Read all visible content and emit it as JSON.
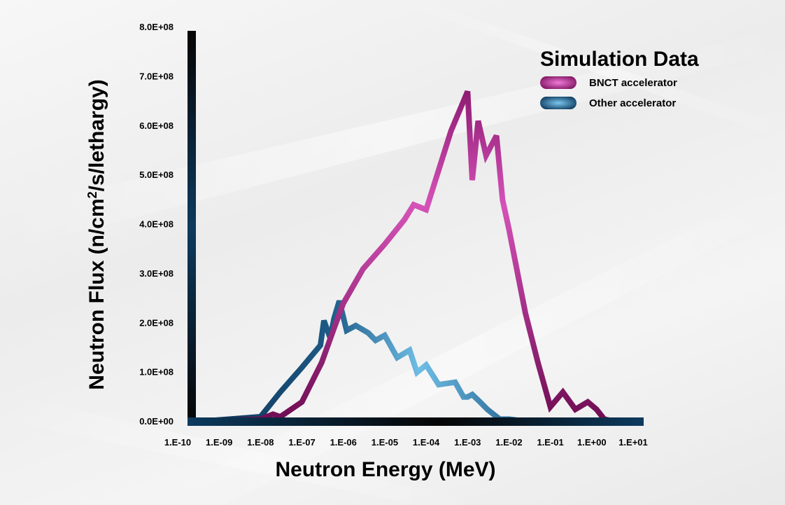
{
  "chart_data": {
    "type": "line",
    "xscale": "log",
    "xlabel": "Neutron Energy (MeV)",
    "ylabel_parts": {
      "before": "Neutron Flux (n/cm",
      "sup": "2",
      "after": "/s/lethargy)"
    },
    "x_tick_labels": [
      "1.E-10",
      "1.E-09",
      "1.E-08",
      "1.E-07",
      "1.E-06",
      "1.E-05",
      "1.E-04",
      "1.E-03",
      "1.E-02",
      "1.E-01",
      "1.E+00",
      "1.E+01"
    ],
    "x_tick_values": [
      1e-10,
      1e-09,
      1e-08,
      1e-07,
      1e-06,
      1e-05,
      0.0001,
      0.001,
      0.01,
      0.1,
      1,
      10
    ],
    "y_tick_labels": [
      "0.0E+00",
      "1.0E+08",
      "2.0E+08",
      "3.0E+08",
      "4.0E+08",
      "5.0E+08",
      "6.0E+08",
      "7.0E+08",
      "8.0E+08"
    ],
    "y_tick_values": [
      0,
      100000000,
      200000000,
      300000000,
      400000000,
      500000000,
      600000000,
      700000000,
      800000000
    ],
    "xlim": [
      1e-10,
      10
    ],
    "ylim": [
      0,
      800000000
    ],
    "grid": false,
    "legend": {
      "title": "Simulation Data",
      "placement": "top-right"
    },
    "series": [
      {
        "name": "BNCT accelerator",
        "color": "#b8409f",
        "x": [
          1e-10,
          3e-10,
          1e-08,
          2e-08,
          3e-08,
          1e-07,
          3e-07,
          6e-07,
          1e-06,
          3e-06,
          1e-05,
          3e-05,
          5e-05,
          0.0001,
          0.0004,
          0.001,
          0.0013,
          0.0018,
          0.0028,
          0.005,
          0.007,
          0.01,
          0.025,
          0.05,
          0.1,
          0.2,
          0.4,
          0.8,
          1.3,
          2,
          4,
          10
        ],
        "y": [
          0,
          0,
          5000000,
          15000000,
          10000000,
          40000000,
          120000000,
          190000000,
          240000000,
          310000000,
          360000000,
          410000000,
          440000000,
          430000000,
          590000000,
          670000000,
          490000000,
          610000000,
          540000000,
          580000000,
          450000000,
          390000000,
          220000000,
          120000000,
          30000000,
          60000000,
          25000000,
          40000000,
          25000000,
          5000000,
          0,
          0
        ]
      },
      {
        "name": "Other accelerator",
        "color": "#3f8ec8",
        "x": [
          1e-10,
          3e-10,
          1e-08,
          3e-08,
          1e-07,
          2.8e-07,
          3.4e-07,
          4.8e-07,
          6e-07,
          8e-07,
          1.2e-06,
          2e-06,
          4e-06,
          6e-06,
          1e-05,
          2e-05,
          4e-05,
          6e-05,
          0.0001,
          0.0002,
          0.0005,
          0.0008,
          0.001,
          0.0013,
          0.002,
          0.003,
          0.006,
          0.01,
          0.03,
          0.1,
          1,
          10
        ],
        "y": [
          0,
          0,
          10000000,
          60000000,
          110000000,
          155000000,
          205000000,
          170000000,
          210000000,
          245000000,
          185000000,
          195000000,
          180000000,
          165000000,
          175000000,
          130000000,
          145000000,
          100000000,
          115000000,
          75000000,
          80000000,
          50000000,
          50000000,
          55000000,
          40000000,
          25000000,
          5000000,
          5000000,
          0,
          0,
          0,
          0
        ]
      }
    ]
  }
}
